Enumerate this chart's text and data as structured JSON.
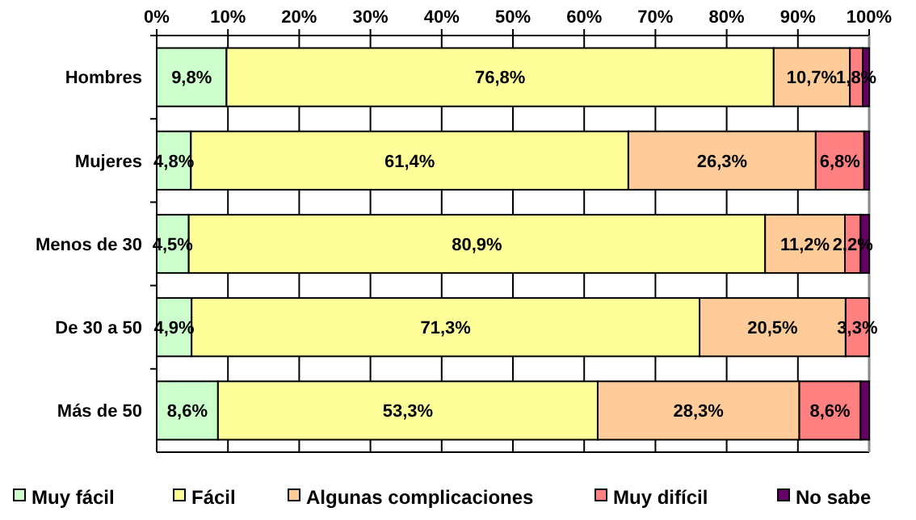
{
  "chart_data": {
    "type": "bar",
    "orientation": "horizontal",
    "stacked": true,
    "categories": [
      "Hombres",
      "Mujeres",
      "Menos de 30",
      "De 30 a 50",
      "Más de 50"
    ],
    "series": [
      {
        "name": "Muy fácil",
        "color": "#ccffcc",
        "values": [
          9.8,
          4.8,
          4.5,
          4.9,
          8.6
        ],
        "value_labels": [
          "9,8%",
          "4,8%",
          "4,5%",
          "4,9%",
          "8,6%"
        ]
      },
      {
        "name": "Fácil",
        "color": "#ffff99",
        "values": [
          76.8,
          61.4,
          80.9,
          71.3,
          53.3
        ],
        "value_labels": [
          "76,8%",
          "61,4%",
          "80,9%",
          "71,3%",
          "53,3%"
        ]
      },
      {
        "name": "Algunas complicaciones",
        "color": "#ffcc99",
        "values": [
          10.7,
          26.3,
          11.2,
          20.5,
          28.3
        ],
        "value_labels": [
          "10,7%",
          "26,3%",
          "11,2%",
          "20,5%",
          "28,3%"
        ]
      },
      {
        "name": "Muy difícil",
        "color": "#ff8080",
        "values": [
          1.8,
          6.8,
          2.2,
          3.3,
          8.6
        ],
        "value_labels": [
          "1,8%",
          "6,8%",
          "2,2%",
          "3,3%",
          "8,6%"
        ]
      },
      {
        "name": "No sabe",
        "color": "#660066",
        "values": [
          0.9,
          0.7,
          1.2,
          0,
          1.2
        ],
        "value_labels": [
          null,
          null,
          null,
          null,
          null
        ]
      }
    ],
    "xlim": [
      0,
      100
    ],
    "xticks": [
      {
        "value": 0,
        "label": "0%"
      },
      {
        "value": 10,
        "label": "10%"
      },
      {
        "value": 20,
        "label": "20%"
      },
      {
        "value": 30,
        "label": "30%"
      },
      {
        "value": 40,
        "label": "40%"
      },
      {
        "value": 50,
        "label": "50%"
      },
      {
        "value": 60,
        "label": "60%"
      },
      {
        "value": 70,
        "label": "70%"
      },
      {
        "value": 80,
        "label": "80%"
      },
      {
        "value": 90,
        "label": "90%"
      },
      {
        "value": 100,
        "label": "100%"
      }
    ],
    "grid": "x",
    "legend": "bottom"
  }
}
